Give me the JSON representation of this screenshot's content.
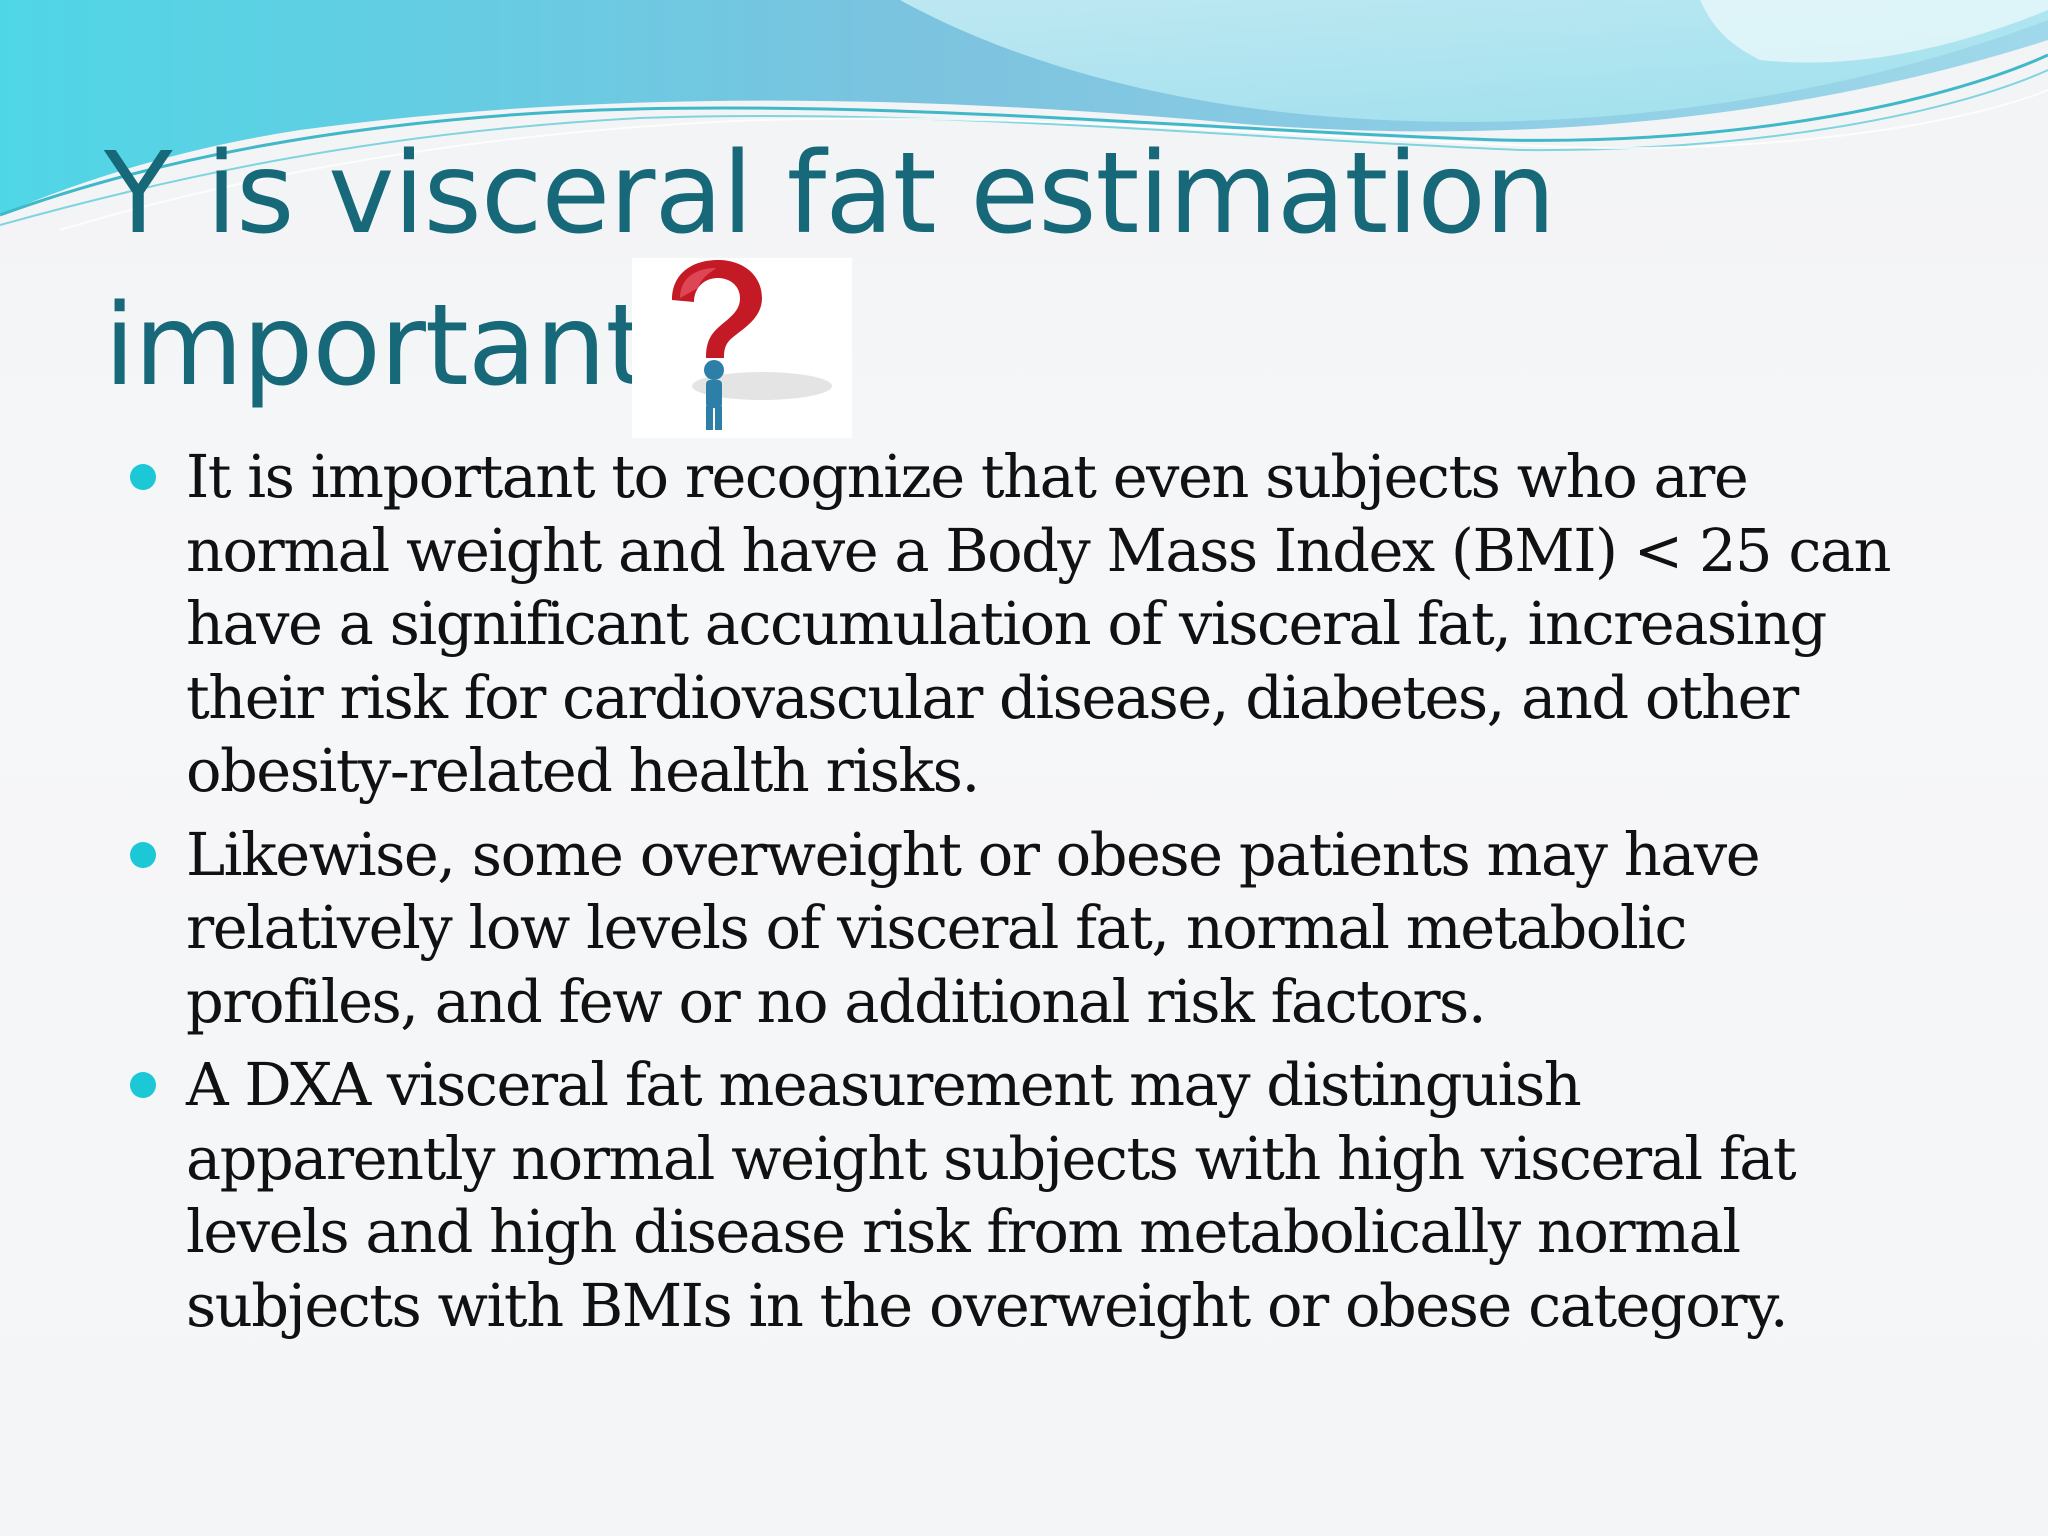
{
  "slide": {
    "title_line1": "Y is visceral fat estimation",
    "title_line2": "important",
    "title_icon": "question-mark-figure-icon",
    "accent_color": "#17697a",
    "bullet_color": "#1cc7d6",
    "bullets": [
      {
        "lines": [
          "It is important to recognize that even subjects who are",
          "normal weight and have a Body Mass Index (BMI) < 25 can",
          "have a significant accumulation of visceral fat, increasing",
          "their risk for cardiovascular disease, diabetes, and other",
          "obesity-related health risks."
        ]
      },
      {
        "lines": [
          "Likewise, some overweight or obese patients may have",
          "relatively low levels of visceral fat, normal metabolic",
          "profiles, and few or no additional risk factors."
        ]
      },
      {
        "lines": [
          "A DXA visceral fat measurement may distinguish",
          "apparently normal weight subjects with high visceral fat",
          "levels and high disease risk from metabolically normal",
          "subjects with BMIs in the overweight or obese category."
        ]
      }
    ]
  }
}
